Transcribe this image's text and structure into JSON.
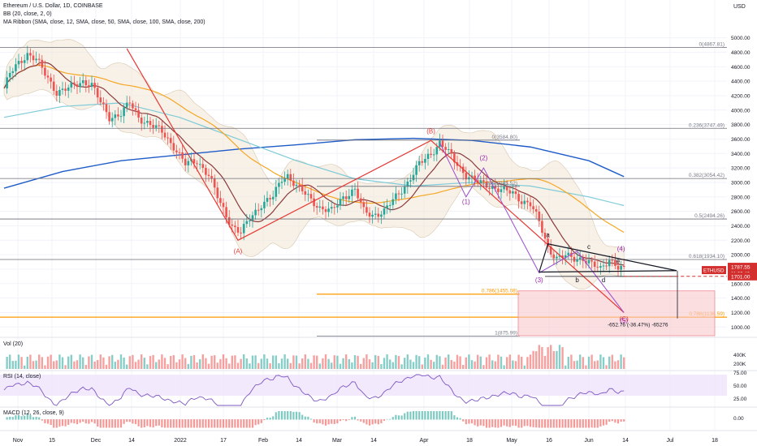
{
  "chart_data": {
    "type": "candlestick",
    "title": "Ethereum / U.S. Dollar, 1D, COINBASE",
    "indicators": [
      "BB (20, close, 2, 0)",
      "MA Ribbon (SMA, close, 12, SMA, close, 50, SMA, close, 100, SMA, close, 200)"
    ],
    "currency": "USD",
    "y_ticks": [
      "5000.00",
      "4800.00",
      "4600.00",
      "4400.00",
      "4200.00",
      "4000.00",
      "3800.00",
      "3600.00",
      "3400.00",
      "3200.00",
      "3000.00",
      "2800.00",
      "2600.00",
      "2400.00",
      "2200.00",
      "2000.00",
      "1800.00",
      "1600.00",
      "1400.00",
      "1200.00",
      "1000.00"
    ],
    "ylim": [
      880,
      5130
    ],
    "x_ticks": [
      "Nov",
      "15",
      "Dec",
      "14",
      "2022",
      "17",
      "Feb",
      "14",
      "Mar",
      "14",
      "Apr",
      "18",
      "May",
      "16",
      "Jun",
      "14",
      "Jul",
      "18"
    ],
    "price_series": [
      {
        "x": 0,
        "y": 4300
      },
      {
        "x": 2,
        "y": 4500
      },
      {
        "x": 5,
        "y": 4650
      },
      {
        "x": 8,
        "y": 4780
      },
      {
        "x": 11,
        "y": 4700
      },
      {
        "x": 14,
        "y": 4500
      },
      {
        "x": 18,
        "y": 4250
      },
      {
        "x": 22,
        "y": 4300
      },
      {
        "x": 27,
        "y": 4400
      },
      {
        "x": 30,
        "y": 4350
      },
      {
        "x": 33,
        "y": 4100
      },
      {
        "x": 36,
        "y": 3900
      },
      {
        "x": 40,
        "y": 3950
      },
      {
        "x": 43,
        "y": 4100
      },
      {
        "x": 46,
        "y": 3900
      },
      {
        "x": 50,
        "y": 3800
      },
      {
        "x": 54,
        "y": 3700
      },
      {
        "x": 58,
        "y": 3500
      },
      {
        "x": 62,
        "y": 3250
      },
      {
        "x": 66,
        "y": 3300
      },
      {
        "x": 70,
        "y": 3100
      },
      {
        "x": 74,
        "y": 2700
      },
      {
        "x": 78,
        "y": 2400
      },
      {
        "x": 81,
        "y": 2300
      },
      {
        "x": 84,
        "y": 2500
      },
      {
        "x": 88,
        "y": 2700
      },
      {
        "x": 92,
        "y": 2800
      },
      {
        "x": 95,
        "y": 3050
      },
      {
        "x": 97,
        "y": 3100
      },
      {
        "x": 100,
        "y": 2950
      },
      {
        "x": 104,
        "y": 2800
      },
      {
        "x": 108,
        "y": 2650
      },
      {
        "x": 112,
        "y": 2600
      },
      {
        "x": 116,
        "y": 2800
      },
      {
        "x": 120,
        "y": 2900
      },
      {
        "x": 123,
        "y": 2600
      },
      {
        "x": 126,
        "y": 2550
      },
      {
        "x": 130,
        "y": 2600
      },
      {
        "x": 134,
        "y": 2800
      },
      {
        "x": 138,
        "y": 3000
      },
      {
        "x": 142,
        "y": 3250
      },
      {
        "x": 146,
        "y": 3400
      },
      {
        "x": 149,
        "y": 3550
      },
      {
        "x": 151,
        "y": 3460
      },
      {
        "x": 155,
        "y": 3250
      },
      {
        "x": 158,
        "y": 3100
      },
      {
        "x": 162,
        "y": 3000
      },
      {
        "x": 166,
        "y": 2950
      },
      {
        "x": 170,
        "y": 2900
      },
      {
        "x": 174,
        "y": 2850
      },
      {
        "x": 177,
        "y": 2750
      },
      {
        "x": 180,
        "y": 2700
      },
      {
        "x": 183,
        "y": 2450
      },
      {
        "x": 186,
        "y": 2100
      },
      {
        "x": 189,
        "y": 1950
      },
      {
        "x": 192,
        "y": 1980
      },
      {
        "x": 195,
        "y": 1950
      },
      {
        "x": 198,
        "y": 1950
      },
      {
        "x": 201,
        "y": 1860
      },
      {
        "x": 204,
        "y": 1800
      },
      {
        "x": 207,
        "y": 1950
      },
      {
        "x": 210,
        "y": 1820
      },
      {
        "x": 212,
        "y": 1787.55
      }
    ],
    "last_price": "1787.55",
    "last_price_timer": "11:09:42",
    "dashed_level": "1701.00",
    "ticker_label": "ETHUSD",
    "fib_levels": [
      {
        "label": "0(4867.81)",
        "value": 4867.81
      },
      {
        "label": "0.236(3747.49)",
        "value": 3747.49
      },
      {
        "label": "0(3584.80)",
        "value": 3584.8
      },
      {
        "label": "0.382(3054.42)",
        "value": 3054.42
      },
      {
        "label": "0.236(2945.52)",
        "value": 2945.52
      },
      {
        "label": "0.5(2494.26)",
        "value": 2494.26
      },
      {
        "label": "0.618(1934.10)",
        "value": 1934.1
      },
      {
        "label": "0.786(1455.08)",
        "value": 1455.08
      },
      {
        "label": "0.786(1136.59)",
        "value": 1136.59
      },
      {
        "label": "1(875.99)",
        "value": 875.99
      }
    ],
    "wave_labels": [
      "(A)",
      "(B)",
      "(C)",
      "(1)",
      "(2)",
      "(3)",
      "(4)",
      "(5)",
      "a",
      "b",
      "c",
      "d",
      "e"
    ],
    "measure_label": "-652.76 (-36.47%) -65276",
    "volume_label": "Vol (20)",
    "volume_ticks": [
      "400K",
      "200K"
    ],
    "rsi_label": "RSI (14, close)",
    "rsi_ticks": [
      "75.00",
      "50.00",
      "25.00"
    ],
    "macd_label": "MACD (12, 26, close, 9)",
    "macd_ticks": [
      "0.00"
    ]
  },
  "colors": {
    "up": "#26a69a",
    "down": "#ef5350",
    "wave": "#e53935",
    "bb_fill": "#f2e6d6",
    "ma200": "#1e5cc8",
    "ma100": "#7ecbd8",
    "ma50": "#f5a623",
    "ma12": "#8b3a3a",
    "orange_line": "#ff9800",
    "target_zone": "#f8c8cc",
    "rsi_band": "#ede1fb"
  }
}
